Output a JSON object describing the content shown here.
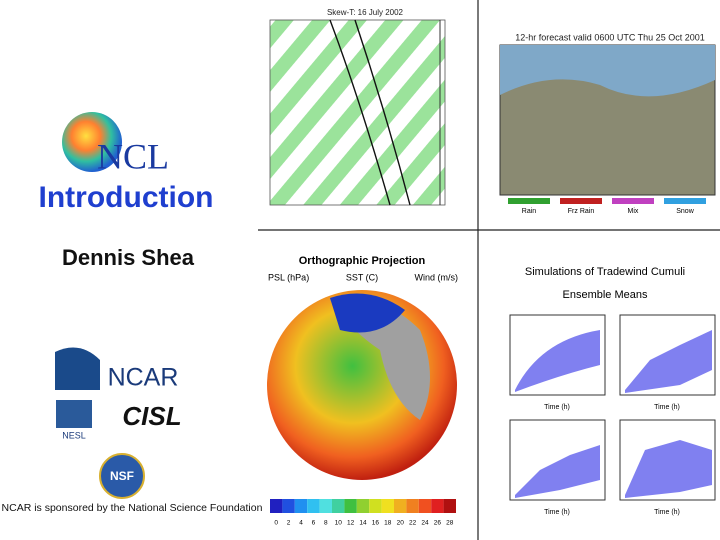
{
  "title": {
    "logo": "NCL",
    "heading": "Introduction",
    "author": "Dennis Shea"
  },
  "logos": {
    "ncar": "NCAR",
    "nesl": "NESL",
    "cisl": "CISL",
    "nsf": "NSF"
  },
  "sponsor": "NCAR is sponsored by the National Science Foundation",
  "skewt": {
    "title": "Skew-T: 16 July 2002"
  },
  "forecast": {
    "title": "12-hr forecast valid 0600 UTC Thu 25 Oct 2001",
    "legend": [
      "Rain",
      "Frz Rain",
      "Mix",
      "Snow"
    ]
  },
  "ortho": {
    "title": "Orthographic Projection",
    "labels": [
      "PSL (hPa)",
      "SST (C)",
      "Wind (m/s)"
    ],
    "colorbar": [
      0,
      2,
      4,
      6,
      8,
      10,
      12,
      14,
      16,
      18,
      20,
      22,
      24,
      26,
      28
    ]
  },
  "cumuli": {
    "title": [
      "Simulations of Tradewind Cumuli",
      "Ensemble Means"
    ],
    "xlabel": "Time (h)"
  }
}
